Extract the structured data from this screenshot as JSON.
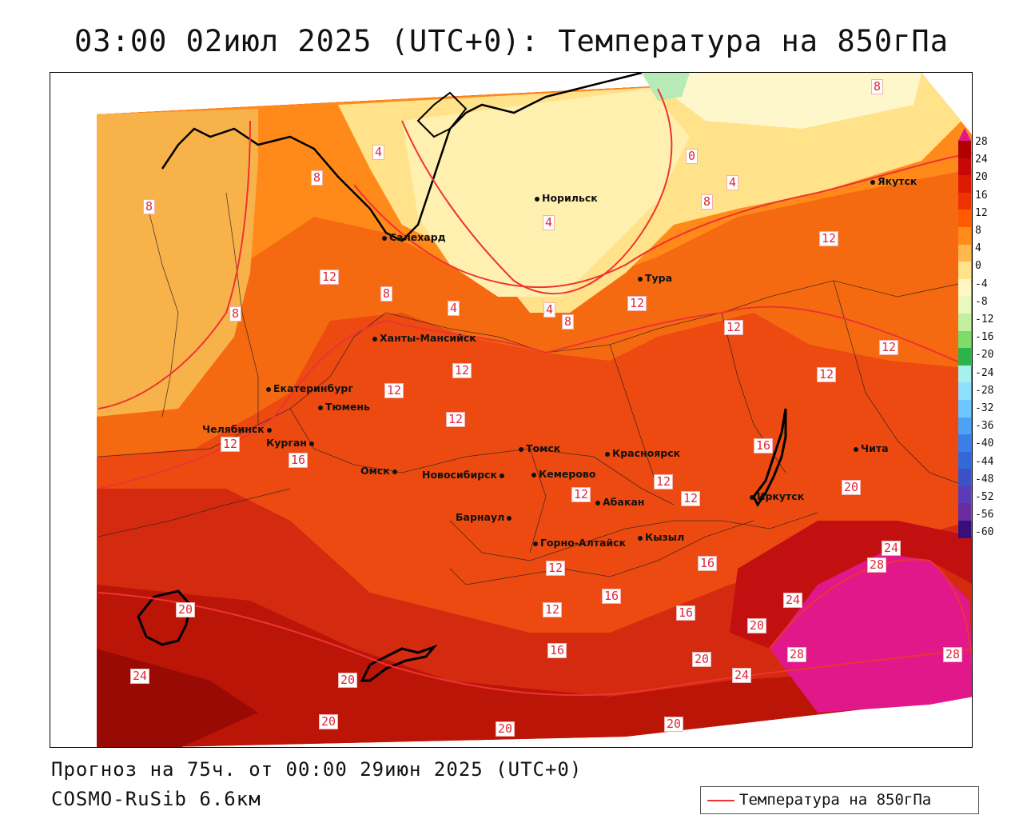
{
  "title": "03:00 02июл 2025 (UTC+0): Температура на 850гПа",
  "forecast_text": "Прогноз на 75ч. от 00:00 29июн 2025 (UTC+0)",
  "model_text": "COSMO-RuSib 6.6км",
  "legend_label": "Температура на 850гПа",
  "colors": {
    "contour_line": "#ee3333",
    "label_text": "#e0283a",
    "band_warm_max": "#e0188a"
  },
  "scale_ticks": [
    "28",
    "24",
    "20",
    "16",
    "12",
    "8",
    "4",
    "0",
    "-4",
    "-8",
    "-12",
    "-16",
    "-20",
    "-24",
    "-28",
    "-32",
    "-36",
    "-40",
    "-44",
    "-48",
    "-52",
    "-56",
    "-60"
  ],
  "scale_colors": [
    "#b00000",
    "#c80808",
    "#dd1a00",
    "#ee3300",
    "#ff5a00",
    "#ff8c1a",
    "#ffb84d",
    "#ffe38a",
    "#fff6c4",
    "#e8f8c0",
    "#c2f0a0",
    "#7ddc6a",
    "#2db34a",
    "#a8f0f0",
    "#8ee0ff",
    "#6cc6ff",
    "#4aa3f5",
    "#3a7fe8",
    "#3468d8",
    "#3c50c8",
    "#5a3cb8",
    "#6a2ca0",
    "#3a0e7a"
  ],
  "cities": [
    {
      "name": "Норильск"
    },
    {
      "name": "Якутск"
    },
    {
      "name": "Салехард"
    },
    {
      "name": "Тура"
    },
    {
      "name": "Ханты-Мансийск"
    },
    {
      "name": "Екатеринбург"
    },
    {
      "name": "Тюмень"
    },
    {
      "name": "Челябинск"
    },
    {
      "name": "Курган"
    },
    {
      "name": "Омск"
    },
    {
      "name": "Новосибирск"
    },
    {
      "name": "Томск"
    },
    {
      "name": "Кемерово"
    },
    {
      "name": "Красноярск"
    },
    {
      "name": "Барнаул"
    },
    {
      "name": "Абакан"
    },
    {
      "name": "Горно-Алтайск"
    },
    {
      "name": "Кызыл"
    },
    {
      "name": "Иркутск"
    },
    {
      "name": "Чита"
    }
  ],
  "contour_labels": [
    "8",
    "4",
    "0",
    "4",
    "8",
    "4",
    "8",
    "8",
    "8",
    "12",
    "8",
    "4",
    "4",
    "8",
    "12",
    "12",
    "12",
    "12",
    "12",
    "12",
    "12",
    "12",
    "12",
    "16",
    "16",
    "12",
    "12",
    "12",
    "20",
    "24",
    "28",
    "16",
    "12",
    "12",
    "16",
    "16",
    "16",
    "24",
    "20",
    "20",
    "24",
    "28",
    "28",
    "20",
    "24",
    "20",
    "20",
    "20",
    "20"
  ]
}
